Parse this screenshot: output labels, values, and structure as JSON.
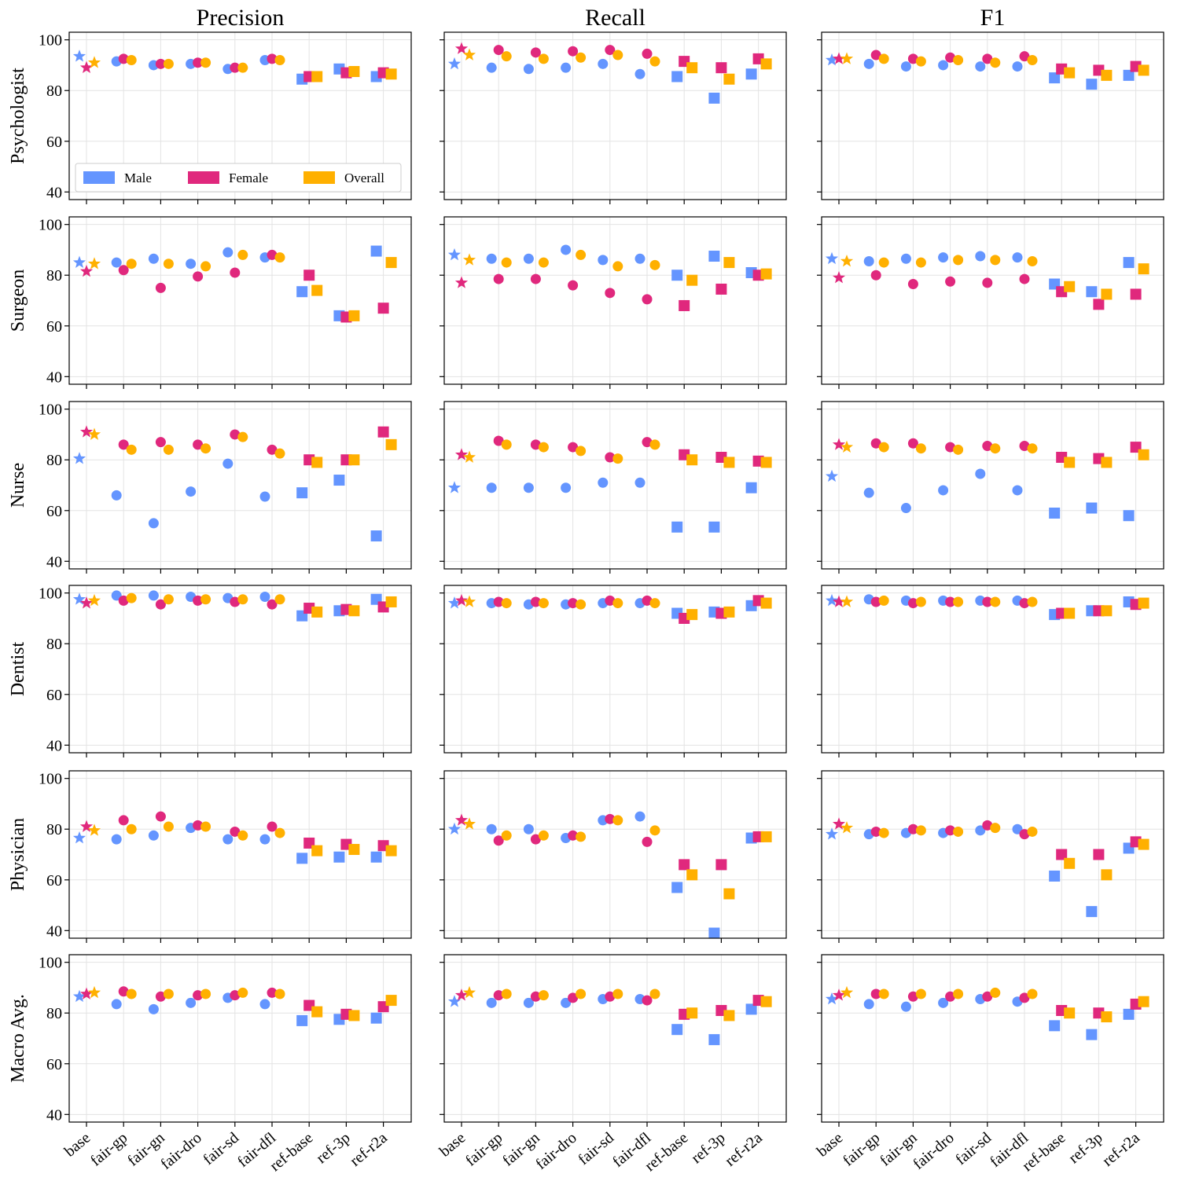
{
  "chart_data": {
    "type": "scatter",
    "title": "",
    "columns": [
      "Precision",
      "Recall",
      "F1"
    ],
    "rows": [
      "Psychologist",
      "Surgeon",
      "Nurse",
      "Dentist",
      "Physician",
      "Macro Avg."
    ],
    "categories": [
      "base",
      "fair-gp",
      "fair-gn",
      "fair-dro",
      "fair-sd",
      "fair-dfl",
      "ref-base",
      "ref-3p",
      "ref-r2a"
    ],
    "category_markers": [
      "star",
      "circle",
      "circle",
      "circle",
      "circle",
      "circle",
      "square",
      "square",
      "square"
    ],
    "series": [
      {
        "name": "Male",
        "color": "#6495ff"
      },
      {
        "name": "Female",
        "color": "#e0287d"
      },
      {
        "name": "Overall",
        "color": "#ffb000"
      }
    ],
    "ylim": [
      37,
      103
    ],
    "yticks": [
      "40",
      "60",
      "80",
      "100"
    ],
    "legend": {
      "entries": [
        "Male",
        "Female",
        "Overall"
      ],
      "position": "lower-left",
      "panel": "Psychologist / Precision"
    },
    "values": {
      "Psychologist": {
        "Precision": {
          "Male": [
            93.5,
            91.5,
            90,
            90.5,
            88.5,
            92,
            84.5,
            88.5,
            85.5
          ],
          "Female": [
            89,
            92.5,
            90.5,
            91,
            89,
            92.5,
            85.5,
            87,
            87
          ],
          "Overall": [
            91,
            92,
            90.5,
            91,
            89,
            92,
            85.5,
            87.5,
            86.5
          ]
        },
        "Recall": {
          "Male": [
            90.5,
            89,
            88.5,
            89,
            90.5,
            86.5,
            85.5,
            77,
            86.5
          ],
          "Female": [
            96.5,
            96,
            95,
            95.5,
            96,
            94.5,
            91.5,
            89,
            92.5
          ],
          "Overall": [
            94,
            93.5,
            92.5,
            93,
            94,
            91.5,
            89,
            84.5,
            90.5
          ]
        },
        "F1": {
          "Male": [
            92,
            90.5,
            89.5,
            90,
            89.5,
            89.5,
            85,
            82.5,
            86
          ],
          "Female": [
            92.5,
            94,
            92.5,
            93,
            92.5,
            93.5,
            88.5,
            88,
            89.5
          ],
          "Overall": [
            92.5,
            92.5,
            91.5,
            92,
            91,
            92,
            87,
            86,
            88
          ]
        }
      },
      "Surgeon": {
        "Precision": {
          "Male": [
            85,
            85,
            86.5,
            84.5,
            89,
            87,
            73.5,
            64,
            89.5
          ],
          "Female": [
            81.5,
            82,
            75,
            79.5,
            81,
            88,
            80,
            63.5,
            67
          ],
          "Overall": [
            84.5,
            84.5,
            84.5,
            83.5,
            88,
            87,
            74,
            64,
            85
          ]
        },
        "Recall": {
          "Male": [
            88,
            86.5,
            86.5,
            90,
            86,
            86.5,
            80,
            87.5,
            81
          ],
          "Female": [
            77,
            78.5,
            78.5,
            76,
            73,
            70.5,
            68,
            74.5,
            80
          ],
          "Overall": [
            86,
            85,
            85,
            88,
            83.5,
            84,
            78,
            85,
            80.5
          ]
        },
        "F1": {
          "Male": [
            86.5,
            85.5,
            86.5,
            87,
            87.5,
            87,
            76.5,
            73.5,
            85
          ],
          "Female": [
            79,
            80,
            76.5,
            77.5,
            77,
            78.5,
            73.5,
            68.5,
            72.5
          ],
          "Overall": [
            85.5,
            85,
            85,
            86,
            86,
            85.5,
            75.5,
            72.5,
            82.5
          ]
        }
      },
      "Nurse": {
        "Precision": {
          "Male": [
            80.5,
            66,
            55,
            67.5,
            78.5,
            65.5,
            67,
            72,
            50
          ],
          "Female": [
            91,
            86,
            87,
            86,
            90,
            84,
            80,
            80,
            91
          ],
          "Overall": [
            90,
            84,
            84,
            84.5,
            89,
            82.5,
            79,
            80,
            86
          ]
        },
        "Recall": {
          "Male": [
            69,
            69,
            69,
            69,
            71,
            71,
            53.5,
            53.5,
            69
          ],
          "Female": [
            82,
            87.5,
            86,
            85,
            81,
            87,
            82,
            81,
            79.5
          ],
          "Overall": [
            81,
            86,
            85,
            83.5,
            80.5,
            86,
            80,
            79,
            79
          ]
        },
        "F1": {
          "Male": [
            73.5,
            67,
            61,
            68,
            74.5,
            68,
            59,
            61,
            58
          ],
          "Female": [
            86,
            86.5,
            86.5,
            85,
            85.5,
            85.5,
            81,
            80.5,
            85
          ],
          "Overall": [
            85,
            85,
            84.5,
            84,
            84.5,
            84.5,
            79,
            79,
            82
          ]
        }
      },
      "Dentist": {
        "Precision": {
          "Male": [
            97.5,
            99,
            99,
            98.5,
            98,
            98.5,
            91,
            93,
            97.5
          ],
          "Female": [
            96,
            97,
            95.5,
            97,
            96.5,
            95.5,
            94,
            93.5,
            94.5
          ],
          "Overall": [
            97,
            98,
            97.5,
            97.5,
            97.5,
            97.5,
            92.5,
            93,
            96.5
          ]
        },
        "Recall": {
          "Male": [
            96,
            96,
            95.5,
            95.5,
            96,
            96,
            92,
            92.5,
            95
          ],
          "Female": [
            97,
            96.5,
            96.5,
            96,
            97,
            97,
            90,
            92,
            97
          ],
          "Overall": [
            96.5,
            96,
            96,
            95.5,
            96,
            96,
            91.5,
            92.5,
            96
          ]
        },
        "F1": {
          "Male": [
            97,
            97.5,
            97,
            97,
            97,
            97,
            91.5,
            93,
            96.5
          ],
          "Female": [
            96.5,
            96.5,
            96,
            96.5,
            96.5,
            96,
            92,
            93,
            95.5
          ],
          "Overall": [
            96.5,
            97,
            96.5,
            96.5,
            96.5,
            96.5,
            92,
            93,
            96
          ]
        }
      },
      "Physician": {
        "Precision": {
          "Male": [
            76.5,
            76,
            77.5,
            80.5,
            76,
            76,
            68.5,
            69,
            69
          ],
          "Female": [
            81,
            83.5,
            85,
            81.5,
            79,
            81,
            74.5,
            74,
            73.5
          ],
          "Overall": [
            79.5,
            80,
            81,
            81,
            77.5,
            78.5,
            71.5,
            72,
            71.5
          ]
        },
        "Recall": {
          "Male": [
            80,
            80,
            80,
            76.5,
            83.5,
            85,
            57,
            39,
            76.5
          ],
          "Female": [
            83.5,
            75.5,
            76,
            77.5,
            84,
            75,
            66,
            66,
            77
          ],
          "Overall": [
            82,
            77.5,
            77.5,
            77,
            83.5,
            79.5,
            62,
            54.5,
            77
          ]
        },
        "F1": {
          "Male": [
            78,
            78,
            78.5,
            78.5,
            79.5,
            80,
            61.5,
            47.5,
            72.5
          ],
          "Female": [
            82,
            79,
            80,
            79.5,
            81.5,
            78,
            70,
            70,
            75
          ],
          "Overall": [
            80.5,
            78.5,
            79.5,
            79,
            80.5,
            79,
            66.5,
            62,
            74
          ]
        }
      },
      "Macro Avg.": {
        "Precision": {
          "Male": [
            86.5,
            83.5,
            81.5,
            84,
            86,
            83.5,
            77,
            77.5,
            78
          ],
          "Female": [
            87.5,
            88.5,
            86.5,
            87,
            87,
            88,
            83,
            79.5,
            82.5
          ],
          "Overall": [
            88,
            87.5,
            87.5,
            87.5,
            88,
            87.5,
            80.5,
            79,
            85
          ]
        },
        "Recall": {
          "Male": [
            84.5,
            84,
            84,
            84,
            85.5,
            85.5,
            73.5,
            69.5,
            81.5
          ],
          "Female": [
            87,
            87,
            86.5,
            86,
            86.5,
            85,
            79.5,
            81,
            85
          ],
          "Overall": [
            88,
            87.5,
            87,
            87.5,
            87.5,
            87.5,
            80,
            79,
            84.5
          ]
        },
        "F1": {
          "Male": [
            85.5,
            83.5,
            82.5,
            84,
            85.5,
            84.5,
            75,
            71.5,
            79.5
          ],
          "Female": [
            87,
            87.5,
            86.5,
            86.5,
            86.5,
            86,
            81,
            80,
            83.5
          ],
          "Overall": [
            88,
            87.5,
            87.5,
            87.5,
            88,
            87.5,
            80,
            78.5,
            84.5
          ]
        }
      }
    }
  }
}
